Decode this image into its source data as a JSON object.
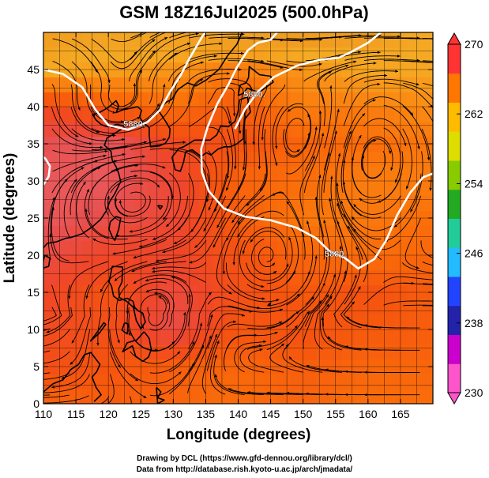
{
  "chart_data": {
    "type": "heatmap",
    "title": "GSM 18Z16Jul2025 (500.0hPa)",
    "xlabel": "Longitude (degrees)",
    "ylabel": "Latitude  (degrees)",
    "xlim": [
      110,
      170
    ],
    "ylim": [
      0,
      50
    ],
    "x_ticks": [
      "110",
      "115",
      "120",
      "125",
      "130",
      "135",
      "140",
      "145",
      "150",
      "155",
      "160",
      "165"
    ],
    "y_ticks": [
      "0",
      "5",
      "10",
      "15",
      "20",
      "25",
      "30",
      "35",
      "40",
      "45"
    ],
    "colorbar": {
      "min": 230,
      "max": 270,
      "ticks": [
        "270",
        "262",
        "254",
        "246",
        "238",
        "230"
      ],
      "colors": [
        "#ff55cc",
        "#cc00cc",
        "#2222aa",
        "#2244ff",
        "#22bbff",
        "#22cc99",
        "#22aa22",
        "#88cc00",
        "#dddd00",
        "#ffbb00",
        "#ff7700",
        "#ff3333"
      ]
    },
    "contour": {
      "label": "5880.",
      "values_m": [
        5880
      ],
      "color": "#ffffff"
    },
    "field_grid": {
      "lons": [
        110,
        120,
        130,
        140,
        150,
        160,
        170
      ],
      "lats": [
        50,
        45,
        40,
        35,
        30,
        25,
        20,
        15,
        10,
        5,
        0
      ],
      "values_K": [
        [
          265.0,
          265.2,
          265.0,
          264.8,
          264.8,
          265.0,
          265.5
        ],
        [
          265.5,
          265.8,
          266.0,
          266.5,
          266.0,
          265.6,
          265.6
        ],
        [
          267.8,
          267.2,
          266.8,
          267.3,
          266.5,
          266.5,
          266.2
        ],
        [
          268.6,
          268.8,
          267.8,
          267.5,
          267.0,
          266.8,
          266.6
        ],
        [
          268.8,
          268.8,
          268.2,
          267.0,
          266.8,
          266.5,
          266.5
        ],
        [
          268.8,
          268.5,
          268.2,
          267.2,
          266.6,
          266.6,
          266.8
        ],
        [
          268.4,
          268.0,
          268.0,
          267.5,
          267.0,
          266.8,
          267.0
        ],
        [
          268.0,
          267.5,
          268.3,
          267.6,
          267.3,
          267.5,
          267.2
        ],
        [
          267.8,
          267.6,
          268.5,
          267.4,
          267.5,
          267.3,
          267.2
        ],
        [
          267.6,
          267.4,
          267.2,
          267.0,
          267.2,
          267.0,
          267.0
        ],
        [
          267.0,
          267.2,
          267.0,
          266.8,
          267.0,
          266.8,
          266.8
        ]
      ]
    },
    "wind_field": {
      "cyclones": [
        [
          122,
          40.5
        ],
        [
          152,
          35.5
        ],
        [
          144.5,
          19.5
        ],
        [
          127,
          13
        ]
      ],
      "anticyclones": [
        [
          158,
          34
        ],
        [
          124,
          28
        ]
      ],
      "westerlies_north_of_lat": 42
    }
  },
  "credits": {
    "line1": "Drawing by DCL (https://www.gfd-dennou.org/library/dcl/)",
    "line2": "Data from http://database.rish.kyoto-u.ac.jp/arch/jmadata/"
  }
}
